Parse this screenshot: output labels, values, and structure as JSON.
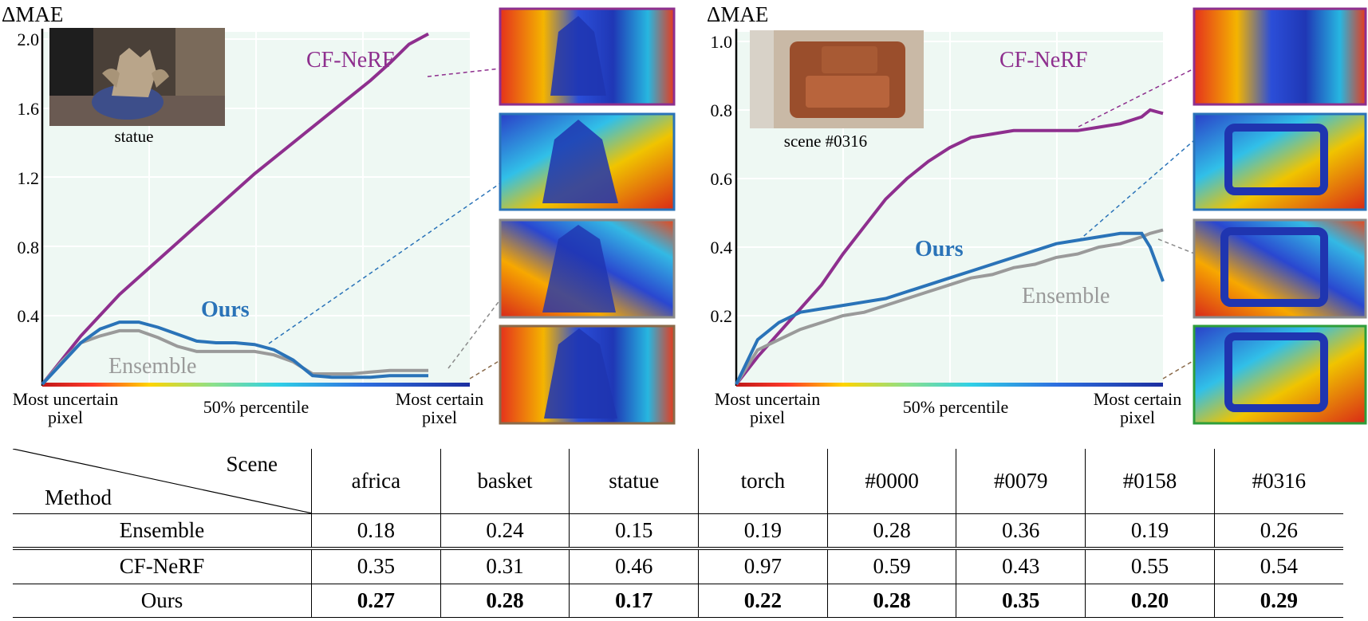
{
  "charts": [
    {
      "id": "statue",
      "ylabel": "ΔMAE",
      "yticks": [
        "2.0",
        "1.6",
        "1.2",
        "0.8",
        "0.4"
      ],
      "inset_caption": "statue",
      "x_left": "Most uncertain",
      "x_left2": "pixel",
      "x_mid": "50% percentile",
      "x_right": "Most certain",
      "x_right2": "pixel",
      "labels": {
        "cfnerf": "CF-NeRF",
        "ours": "Ours",
        "ensemble": "Ensemble"
      }
    },
    {
      "id": "scene0316",
      "ylabel": "ΔMAE",
      "yticks": [
        "1.0",
        "0.8",
        "0.6",
        "0.4",
        "0.2"
      ],
      "inset_caption": "scene #0316",
      "x_left": "Most uncertain",
      "x_left2": "pixel",
      "x_mid": "50% percentile",
      "x_right": "Most certain",
      "x_right2": "pixel",
      "labels": {
        "cfnerf": "CF-NeRF",
        "ours": "Ours",
        "ensemble": "Ensemble"
      }
    }
  ],
  "colors": {
    "cfnerf": "#8e2f8e",
    "ours": "#2a73b8",
    "ensemble": "#9a9a9a",
    "plot_bg": "#eef8f3"
  },
  "chart_data": [
    {
      "type": "line",
      "x": [
        0,
        0.05,
        0.1,
        0.15,
        0.2,
        0.25,
        0.3,
        0.35,
        0.4,
        0.45,
        0.5,
        0.55,
        0.6,
        0.65,
        0.7,
        0.75,
        0.8,
        0.85,
        0.9,
        0.95,
        1.0
      ],
      "ylabel": "ΔMAE",
      "ylim": [
        0,
        2.0
      ],
      "series": [
        {
          "name": "CF-NeRF",
          "values": [
            0,
            0.14,
            0.28,
            0.4,
            0.52,
            0.62,
            0.72,
            0.82,
            0.92,
            1.02,
            1.12,
            1.22,
            1.31,
            1.4,
            1.49,
            1.58,
            1.67,
            1.76,
            1.86,
            1.97,
            2.03
          ]
        },
        {
          "name": "Ours",
          "values": [
            0,
            0.12,
            0.24,
            0.32,
            0.36,
            0.36,
            0.33,
            0.29,
            0.25,
            0.24,
            0.24,
            0.23,
            0.2,
            0.14,
            0.05,
            0.04,
            0.04,
            0.04,
            0.05,
            0.05,
            0.05
          ]
        },
        {
          "name": "Ensemble",
          "values": [
            0,
            0.13,
            0.24,
            0.28,
            0.31,
            0.31,
            0.27,
            0.22,
            0.19,
            0.19,
            0.19,
            0.19,
            0.17,
            0.13,
            0.06,
            0.06,
            0.06,
            0.07,
            0.08,
            0.08,
            0.08
          ]
        }
      ]
    },
    {
      "type": "line",
      "x": [
        0,
        0.05,
        0.1,
        0.15,
        0.2,
        0.25,
        0.3,
        0.35,
        0.4,
        0.45,
        0.5,
        0.55,
        0.6,
        0.65,
        0.7,
        0.75,
        0.8,
        0.85,
        0.9,
        0.95,
        0.97,
        1.0
      ],
      "ylabel": "ΔMAE",
      "ylim": [
        0,
        1.0
      ],
      "series": [
        {
          "name": "CF-NeRF",
          "values": [
            0,
            0.08,
            0.15,
            0.22,
            0.29,
            0.38,
            0.46,
            0.54,
            0.6,
            0.65,
            0.69,
            0.72,
            0.73,
            0.74,
            0.74,
            0.74,
            0.74,
            0.75,
            0.76,
            0.78,
            0.8,
            0.79
          ]
        },
        {
          "name": "Ours",
          "values": [
            0,
            0.13,
            0.18,
            0.21,
            0.22,
            0.23,
            0.24,
            0.25,
            0.27,
            0.29,
            0.31,
            0.33,
            0.35,
            0.37,
            0.39,
            0.41,
            0.42,
            0.43,
            0.44,
            0.44,
            0.4,
            0.3
          ]
        },
        {
          "name": "Ensemble",
          "values": [
            0,
            0.1,
            0.13,
            0.16,
            0.18,
            0.2,
            0.21,
            0.23,
            0.25,
            0.27,
            0.29,
            0.31,
            0.32,
            0.34,
            0.35,
            0.37,
            0.38,
            0.4,
            0.41,
            0.43,
            0.44,
            0.45
          ]
        }
      ]
    },
    {
      "type": "table",
      "corner_top": "Scene",
      "corner_bottom": "Method",
      "columns": [
        "africa",
        "basket",
        "statue",
        "torch",
        "#0000",
        "#0079",
        "#0158",
        "#0316"
      ],
      "rows": [
        {
          "method": "Ensemble",
          "values": [
            "0.18",
            "0.24",
            "0.15",
            "0.19",
            "0.28",
            "0.36",
            "0.19",
            "0.26"
          ]
        },
        {
          "method": "CF-NeRF",
          "values": [
            "0.35",
            "0.31",
            "0.46",
            "0.97",
            "0.59",
            "0.43",
            "0.55",
            "0.54"
          ]
        },
        {
          "method": "Ours",
          "values": [
            "0.27",
            "0.28",
            "0.17",
            "0.22",
            "0.28",
            "0.35",
            "0.20",
            "0.29"
          ],
          "bold": true
        }
      ]
    }
  ]
}
